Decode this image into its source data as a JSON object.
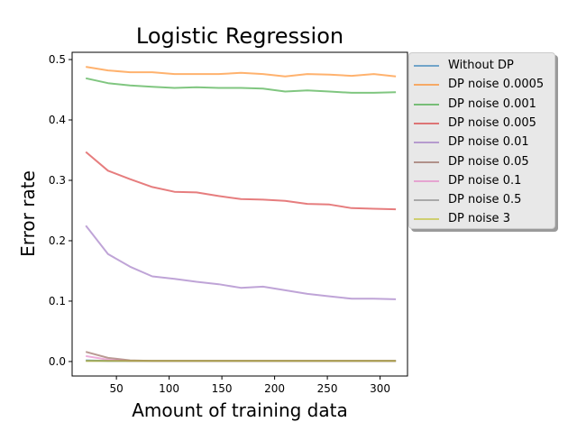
{
  "chart_data": {
    "type": "line",
    "title": "Logistic Regression",
    "xlabel": "Amount of training data",
    "ylabel": "Error rate",
    "xlim": [
      8,
      326
    ],
    "ylim": [
      -0.024,
      0.512
    ],
    "xticks": [
      50,
      100,
      150,
      200,
      250,
      300
    ],
    "yticks": [
      0.0,
      0.1,
      0.2,
      0.3,
      0.4,
      0.5
    ],
    "ytick_labels": [
      "0.0",
      "0.1",
      "0.2",
      "0.3",
      "0.4",
      "0.5"
    ],
    "grid": false,
    "legend_position": "outside-right",
    "x": [
      21,
      42,
      63,
      84,
      105,
      126,
      147,
      168,
      189,
      210,
      231,
      252,
      273,
      294,
      315
    ],
    "series": [
      {
        "name": "Without DP",
        "color": "#1f77b4",
        "values": [
          0.002,
          0.001,
          0.001,
          0.001,
          0.001,
          0.001,
          0.001,
          0.001,
          0.001,
          0.001,
          0.001,
          0.001,
          0.001,
          0.001,
          0.001
        ]
      },
      {
        "name": "DP noise 0.0005",
        "color": "#ff7f0e",
        "values": [
          0.488,
          0.482,
          0.479,
          0.479,
          0.476,
          0.476,
          0.476,
          0.478,
          0.476,
          0.472,
          0.476,
          0.475,
          0.473,
          0.476,
          0.472
        ]
      },
      {
        "name": "DP noise 0.001",
        "color": "#2ca02c",
        "values": [
          0.469,
          0.461,
          0.457,
          0.455,
          0.453,
          0.454,
          0.453,
          0.453,
          0.452,
          0.447,
          0.449,
          0.447,
          0.445,
          0.445,
          0.446
        ]
      },
      {
        "name": "DP noise 0.005",
        "color": "#d62728",
        "values": [
          0.347,
          0.316,
          0.302,
          0.289,
          0.281,
          0.28,
          0.274,
          0.269,
          0.268,
          0.266,
          0.261,
          0.26,
          0.254,
          0.253,
          0.252
        ]
      },
      {
        "name": "DP noise 0.01",
        "color": "#9467bd",
        "values": [
          0.225,
          0.178,
          0.157,
          0.141,
          0.137,
          0.132,
          0.128,
          0.122,
          0.124,
          0.118,
          0.112,
          0.108,
          0.104,
          0.104,
          0.103
        ]
      },
      {
        "name": "DP noise 0.05",
        "color": "#8c564b",
        "values": [
          0.016,
          0.006,
          0.002,
          0.001,
          0.001,
          0.001,
          0.001,
          0.001,
          0.001,
          0.001,
          0.001,
          0.001,
          0.001,
          0.001,
          0.001
        ]
      },
      {
        "name": "DP noise 0.1",
        "color": "#e377c2",
        "values": [
          0.009,
          0.003,
          0.001,
          0.001,
          0.001,
          0.001,
          0.001,
          0.001,
          0.001,
          0.001,
          0.001,
          0.001,
          0.001,
          0.001,
          0.001
        ]
      },
      {
        "name": "DP noise 0.5",
        "color": "#7f7f7f",
        "values": [
          0.001,
          0.001,
          0.001,
          0.001,
          0.001,
          0.001,
          0.001,
          0.001,
          0.001,
          0.001,
          0.001,
          0.001,
          0.001,
          0.001,
          0.001
        ]
      },
      {
        "name": "DP noise 3",
        "color": "#bcbd22",
        "values": [
          0.001,
          0.001,
          0.001,
          0.001,
          0.001,
          0.001,
          0.001,
          0.001,
          0.001,
          0.001,
          0.001,
          0.001,
          0.001,
          0.001,
          0.001
        ]
      }
    ]
  }
}
